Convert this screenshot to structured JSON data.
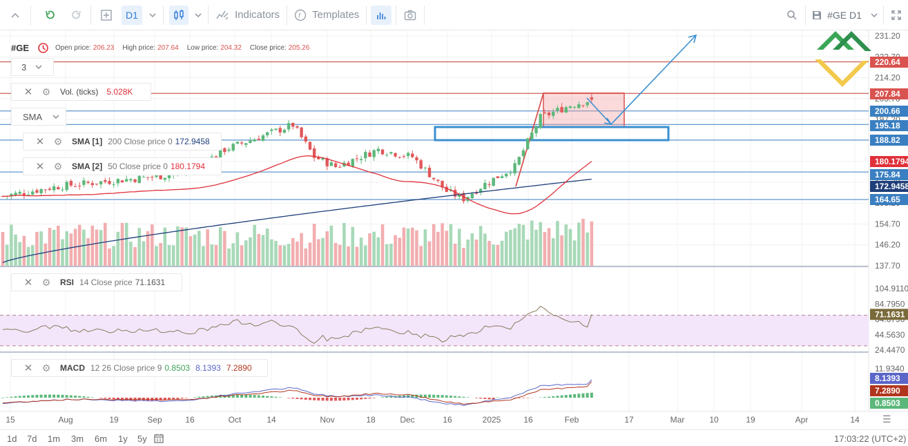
{
  "toolbar": {
    "timeframe": "D1",
    "indicators_label": "Indicators",
    "templates_label": "Templates",
    "symbol_label": "#GE D1",
    "icons": [
      "chevron-up-icon",
      "undo-icon",
      "redo-icon",
      "add-icon",
      "chevron-down-icon",
      "candlestick-icon",
      "indicators-icon",
      "templates-icon",
      "bars-icon",
      "camera-icon",
      "search-icon",
      "save-icon",
      "fullscreen-icon"
    ]
  },
  "info": {
    "symbol": "#GE",
    "open_label": "Open price:",
    "open": "206.23",
    "high_label": "High price:",
    "high": "207.64",
    "low_label": "Low price:",
    "low": "204.32",
    "close_label": "Close price:",
    "close": "205.26"
  },
  "layer_select": "3",
  "type_select": "SMA",
  "legends": {
    "volume": {
      "name": "Vol. (ticks)",
      "params": "",
      "value": "5.028K"
    },
    "sma1": {
      "name": "SMA [1]",
      "params": "200 Close price 0",
      "value": "172.9458"
    },
    "sma2": {
      "name": "SMA [2]",
      "params": "50 Close price 0",
      "value": "180.1794"
    },
    "rsi": {
      "name": "RSI",
      "params": "14 Close price",
      "value": "71.1631"
    },
    "macd": {
      "name": "MACD",
      "params": "12 26 Close price 9",
      "v1": "0.8503",
      "v2": "8.1393",
      "v3": "7.2890"
    }
  },
  "price_axis": {
    "ticks": [
      "231.20",
      "222.70",
      "214.20",
      "205.70",
      "197.20",
      "188.70",
      "180.20",
      "171.70",
      "163.20",
      "154.70",
      "146.20",
      "137.70"
    ],
    "labels": [
      {
        "text": "220.64",
        "color": "#d9534f"
      },
      {
        "text": "207.84",
        "color": "#d9534f"
      },
      {
        "text": "200.66",
        "color": "#3a7fc1"
      },
      {
        "text": "195.18",
        "color": "#3a7fc1"
      },
      {
        "text": "188.82",
        "color": "#3a7fc1"
      },
      {
        "text": "180.1794",
        "color": "#e0303a"
      },
      {
        "text": "175.84",
        "color": "#3a7fc1"
      },
      {
        "text": "172.9458",
        "color": "#1f3f7a"
      },
      {
        "text": "164.65",
        "color": "#3a7fc1"
      }
    ]
  },
  "rsi_axis": {
    "ticks": [
      "104.9110",
      "84.7950",
      "64.6790",
      "44.5630",
      "24.4470"
    ],
    "value_label": {
      "text": "71.1631",
      "color": "#7a6a3a"
    },
    "levels": [
      70,
      30
    ]
  },
  "macd_axis": {
    "ticks": [
      "11.9340"
    ],
    "labels": [
      {
        "text": "8.1393",
        "color": "#5a66c8"
      },
      {
        "text": "7.2890",
        "color": "#b1361e"
      },
      {
        "text": "0.8503",
        "color": "#5cb87a"
      }
    ]
  },
  "time_axis": [
    "15",
    "Aug",
    "19",
    "Sep",
    "16",
    "Oct",
    "14",
    "Nov",
    "18",
    "Dec",
    "16",
    "2025",
    "16",
    "Feb",
    "17",
    "Mar",
    "10",
    "19",
    "Apr",
    "14"
  ],
  "bottom": {
    "periods": [
      "1d",
      "7d",
      "1m",
      "3m",
      "6m",
      "1y",
      "5y"
    ],
    "clock": "17:03:22 (UTC+2)"
  },
  "colors": {
    "up": "#5cb87a",
    "down": "#e0585a",
    "vol_up": "#a8d9b8",
    "vol_down": "#f2aeb0",
    "sma200": "#1f3f7a",
    "sma50": "#e0303a"
  },
  "chart_data": {
    "type": "candlestick",
    "symbol": "#GE",
    "timeframe": "D1",
    "ylim": [
      137.7,
      231.2
    ],
    "close_series_approx": [
      {
        "x": "Jul 15",
        "y": 166
      },
      {
        "x": "Aug",
        "y": 170
      },
      {
        "x": "Aug 19",
        "y": 172
      },
      {
        "x": "Sep",
        "y": 174
      },
      {
        "x": "Sep 16",
        "y": 176
      },
      {
        "x": "Sep 23",
        "y": 185
      },
      {
        "x": "Oct",
        "y": 190
      },
      {
        "x": "Oct 14",
        "y": 195
      },
      {
        "x": "Oct 22",
        "y": 182
      },
      {
        "x": "Nov",
        "y": 178
      },
      {
        "x": "Nov 18",
        "y": 185
      },
      {
        "x": "Dec",
        "y": 182
      },
      {
        "x": "Dec 16",
        "y": 168
      },
      {
        "x": "Dec 23",
        "y": 165
      },
      {
        "x": "2025",
        "y": 171
      },
      {
        "x": "Jan 16",
        "y": 178
      },
      {
        "x": "Jan 23",
        "y": 198
      },
      {
        "x": "Feb",
        "y": 203
      },
      {
        "x": "Feb 7",
        "y": 205.26
      }
    ],
    "sma200_last": 172.9458,
    "sma50_last": 180.1794,
    "horizontal_levels": [
      220.64,
      207.84,
      200.66,
      195.18,
      188.82,
      175.84,
      164.65
    ],
    "rsi_last": 71.1631,
    "macd": {
      "histogram": 0.8503,
      "macd": 8.1393,
      "signal": 7.289
    }
  }
}
